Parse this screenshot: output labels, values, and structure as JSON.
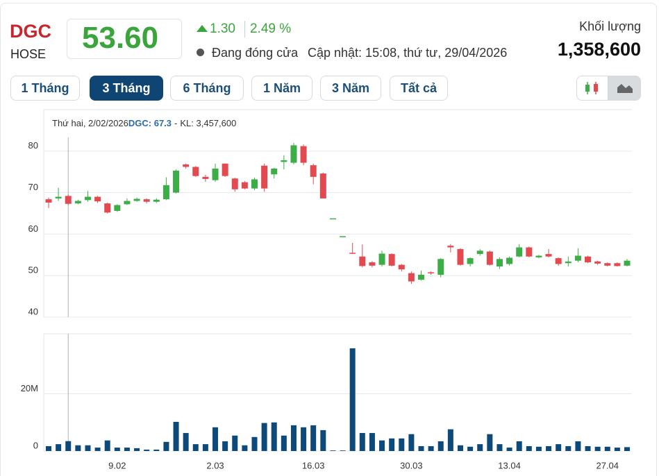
{
  "header": {
    "ticker": "DGC",
    "exchange": "HOSE",
    "price": "53.60",
    "change": "1.30",
    "change_pct": "2.49 %",
    "status": "Đang đóng cửa",
    "updated": "Cập nhật: 15:08, thứ tư, 29/04/2026",
    "volume_title": "Khối lượng",
    "volume": "1,358,600"
  },
  "periods": [
    "1 Tháng",
    "3 Tháng",
    "6 Tháng",
    "1 Năm",
    "3 Năm",
    "Tất cả"
  ],
  "active_period": 1,
  "chart_data": {
    "type": "candlestick",
    "hover": {
      "index": 2,
      "date": "Thứ hai, 2/02/2026",
      "price_label": "DGC: 67.3",
      "volume_label": "KL: 3,457,600"
    },
    "categories": [
      null,
      null,
      null,
      null,
      null,
      null,
      null,
      "9.02",
      null,
      null,
      null,
      null,
      null,
      null,
      null,
      null,
      null,
      "2.03",
      null,
      null,
      null,
      null,
      null,
      null,
      null,
      null,
      null,
      "16.03",
      null,
      null,
      null,
      null,
      null,
      null,
      null,
      null,
      null,
      "30.03",
      null,
      null,
      null,
      null,
      null,
      null,
      null,
      null,
      null,
      "13.04",
      null,
      null,
      null,
      null,
      null,
      null,
      null,
      null,
      null,
      "27.04",
      null,
      null
    ],
    "open": [
      68.4,
      68.6,
      69.2,
      67.4,
      68.2,
      69,
      67.4,
      65.6,
      67.2,
      68,
      68.4,
      67.8,
      68.4,
      70,
      76.8,
      76.2,
      73.8,
      73,
      77,
      73.4,
      72.5,
      71,
      76.5,
      74.4,
      77.4,
      77.2,
      81.2,
      76.6,
      74.6,
      63.8,
      59.5,
      55.5,
      54.6,
      53.2,
      52.6,
      55.2,
      52.6,
      50.6,
      49,
      50.8,
      50.2,
      57.2,
      56.4,
      52.8,
      55.2,
      55.8,
      52.2,
      52.8,
      54.6,
      56.8,
      54.4,
      55.2,
      54.2,
      53,
      53.6,
      54.6,
      53.4,
      53,
      53,
      52.4
    ],
    "high": [
      68.8,
      71.2,
      69.5,
      68.3,
      70.4,
      69.2,
      67.6,
      67.2,
      68.6,
      68.8,
      68.6,
      68.6,
      73.7,
      75.6,
      77,
      76.4,
      74.3,
      77,
      77,
      73.6,
      72.8,
      73.6,
      77,
      76,
      79,
      82,
      81.6,
      77,
      74.8,
      63.8,
      59.5,
      57.9,
      57.5,
      53.5,
      56,
      55.4,
      52.8,
      51,
      51.2,
      51,
      54.2,
      57.6,
      56.6,
      54.4,
      56.4,
      56,
      54.4,
      54.6,
      57.6,
      57,
      55,
      56.4,
      54.4,
      54.6,
      56.6,
      54.8,
      53.6,
      53.2,
      53.2,
      54
    ],
    "low": [
      66.3,
      68,
      67,
      67.2,
      67.8,
      67.5,
      65,
      65.4,
      67,
      67.8,
      67.4,
      67.5,
      68.2,
      69.8,
      75.8,
      73.8,
      72.6,
      72.6,
      73.8,
      70.2,
      70.8,
      70.6,
      70.2,
      73.4,
      75.6,
      76.8,
      76.6,
      72,
      68.6,
      63.8,
      59.5,
      55.4,
      52,
      52,
      52.2,
      52.2,
      51,
      48,
      48.8,
      50.2,
      49.6,
      55.6,
      52.4,
      52.2,
      54.8,
      52.4,
      51.6,
      52.4,
      54.4,
      54.4,
      54.2,
      54.4,
      52.4,
      52.2,
      53.2,
      53,
      52.6,
      52.2,
      52.2,
      52.2
    ],
    "close": [
      67.6,
      69,
      67.3,
      68,
      69,
      67.9,
      65.2,
      67,
      68,
      68.5,
      67.8,
      68.3,
      71.8,
      75.3,
      76.2,
      74,
      73.3,
      75.8,
      74,
      70.8,
      71,
      73.2,
      71,
      75.8,
      77.8,
      81.4,
      77.2,
      73.8,
      68.6,
      63.8,
      59.5,
      55.4,
      52.3,
      52.4,
      55.3,
      52.4,
      51.5,
      48.6,
      50.2,
      50.6,
      54,
      56.8,
      52.6,
      54.2,
      56,
      52.6,
      54,
      54.3,
      56.8,
      54.6,
      54.8,
      54.6,
      52.8,
      53.4,
      54.8,
      53.2,
      52.9,
      52.4,
      52.3,
      53.6
    ],
    "volume": [
      1700000,
      2400000,
      3457600,
      2000000,
      2000000,
      1200000,
      3700000,
      1200000,
      1200000,
      1000000,
      500000,
      500000,
      3200000,
      10200000,
      6300000,
      2400000,
      2400000,
      8300000,
      3400000,
      5400000,
      2000000,
      4900000,
      9800000,
      10000000,
      5400000,
      9000000,
      8300000,
      9000000,
      7300000,
      200000,
      200000,
      35900000,
      6300000,
      6300000,
      3700000,
      4400000,
      4400000,
      5900000,
      1700000,
      1700000,
      3400000,
      7600000,
      2000000,
      1500000,
      2400000,
      5900000,
      2400000,
      1200000,
      3400000,
      1700000,
      1500000,
      1700000,
      2400000,
      1700000,
      3400000,
      1700000,
      1500000,
      1500000,
      1200000,
      1358600
    ],
    "ylim": [
      40,
      90
    ],
    "yticks": [
      40,
      50,
      60,
      70,
      80
    ],
    "volume_ylim": [
      0,
      41000000
    ],
    "volume_yticks": [
      0,
      {
        "value": 20000000,
        "label": "20M"
      }
    ],
    "up_color": "#3dae47",
    "down_color": "#e34a4f",
    "volume_color": "#0d4a7a",
    "grid": true
  }
}
